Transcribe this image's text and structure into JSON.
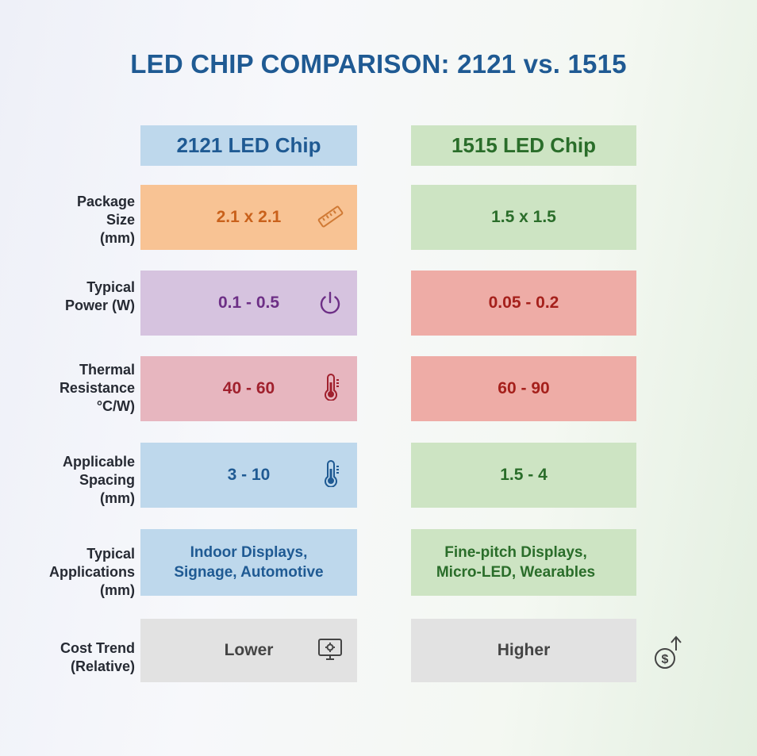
{
  "title": "LED CHIP COMPARISON: 2121 vs. 1515",
  "columns": {
    "a": "2121 LED Chip",
    "b": "1515 LED Chip"
  },
  "colors": {
    "title": "#1f5a93",
    "head_a_bg": "#bed8ec",
    "head_b_bg": "#cde4c3",
    "orange": "#f8c394",
    "purple": "#d6c3df",
    "pink": "#e7b6bf",
    "blue": "#bed8ec",
    "green": "#cde4c3",
    "red": "#eeaca6",
    "gray": "#e2e2e2"
  },
  "rows": [
    {
      "label_lines": [
        "Package",
        "Size",
        "(mm)"
      ],
      "a": "2.1 x 2.1",
      "a_icon": "ruler-icon",
      "b": "1.5 x 1.5"
    },
    {
      "label_lines": [
        "Typical",
        "Power (W)"
      ],
      "a": "0.1 - 0.5",
      "a_icon": "power-icon",
      "b": "0.05 - 0.2"
    },
    {
      "label_lines": [
        "Thermal",
        "Resistance",
        "°C/W)"
      ],
      "a": "40 - 60",
      "a_icon": "thermometer-icon",
      "b": "60 - 90"
    },
    {
      "label_lines": [
        "Applicable",
        "Spacing",
        "(mm)"
      ],
      "a": "3 - 10",
      "a_icon": "thermometer-icon",
      "b": "1.5 - 4"
    },
    {
      "label_lines": [
        "Typical",
        "Applications",
        "(mm)"
      ],
      "a_lines": [
        "Indoor Displays,",
        "Signage, Automotive"
      ],
      "b_lines": [
        "Fine-pitch Displays,",
        "Micro-LED, Wearables"
      ]
    },
    {
      "label_lines": [
        "Cost Trend",
        "(Relative)"
      ],
      "a": "Lower",
      "a_icon": "monitor-gear-icon",
      "b": "Higher",
      "b_icon": "dollar-up-icon"
    }
  ]
}
